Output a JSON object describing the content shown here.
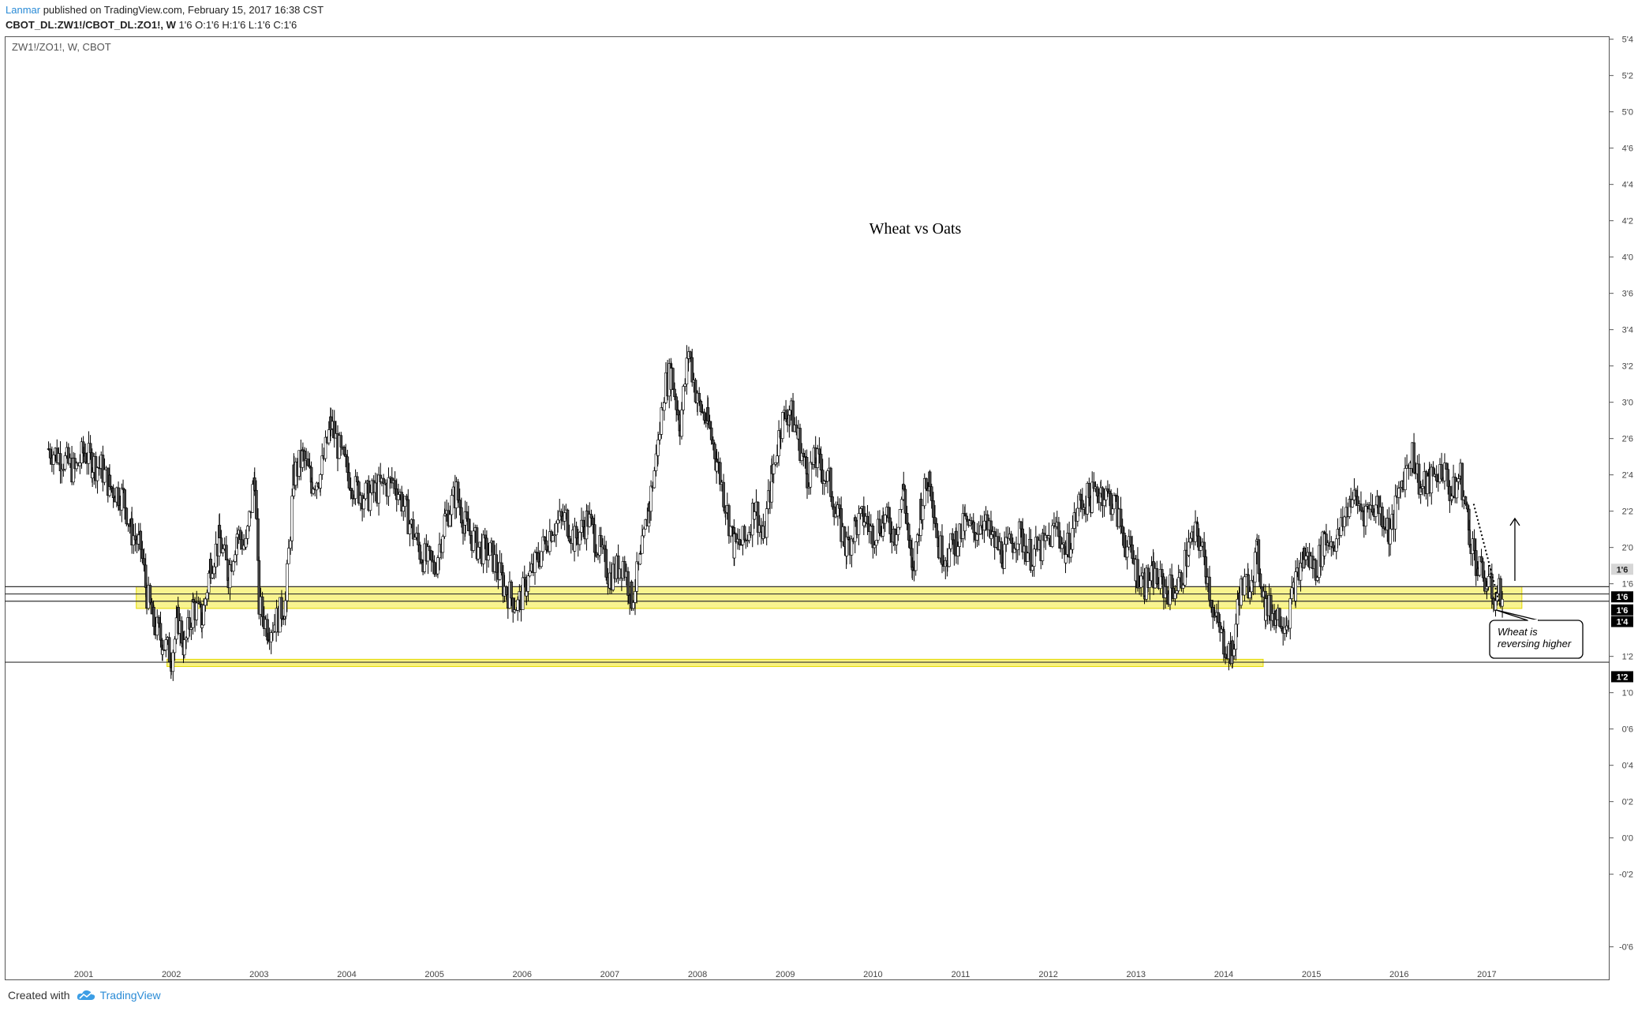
{
  "header": {
    "author": "Lanmar",
    "published": "published on TradingView.com, February 15, 2017 16:38 CST",
    "symbol": "CBOT_DL:ZW1!/CBOT_DL:ZO1!, W",
    "ohlc": "1'6 O:1'6 H:1'6 L:1'6 C:1'6"
  },
  "footer": {
    "created_with": "Created with",
    "brand": "TradingView"
  },
  "chart_data": {
    "type": "candlestick",
    "legend": "ZW1!/ZO1!, W, CBOT",
    "title": "Wheat vs Oats",
    "y_ticks": [
      {
        "v": 5.5,
        "label": "5'4"
      },
      {
        "v": 5.25,
        "label": "5'2"
      },
      {
        "v": 5.0,
        "label": "5'0"
      },
      {
        "v": 4.75,
        "label": "4'6"
      },
      {
        "v": 4.5,
        "label": "4'4"
      },
      {
        "v": 4.25,
        "label": "4'2"
      },
      {
        "v": 4.0,
        "label": "4'0"
      },
      {
        "v": 3.75,
        "label": "3'6"
      },
      {
        "v": 3.5,
        "label": "3'4"
      },
      {
        "v": 3.25,
        "label": "3'2"
      },
      {
        "v": 3.0,
        "label": "3'0"
      },
      {
        "v": 2.75,
        "label": "2'6"
      },
      {
        "v": 2.5,
        "label": "2'4"
      },
      {
        "v": 2.25,
        "label": "2'2"
      },
      {
        "v": 2.0,
        "label": "2'0"
      },
      {
        "v": 1.75,
        "label": "1'6"
      },
      {
        "v": 1.25,
        "label": "1'2"
      },
      {
        "v": 1.0,
        "label": "1'0"
      },
      {
        "v": 0.75,
        "label": "0'6"
      },
      {
        "v": 0.5,
        "label": "0'4"
      },
      {
        "v": 0.25,
        "label": "0'2"
      },
      {
        "v": 0.0,
        "label": "0'0"
      },
      {
        "v": -0.25,
        "label": "-0'2"
      },
      {
        "v": -0.75,
        "label": "-0'6"
      }
    ],
    "x_ticks": [
      "2001",
      "2002",
      "2003",
      "2004",
      "2005",
      "2006",
      "2007",
      "2008",
      "2009",
      "2010",
      "2011",
      "2012",
      "2013",
      "2014",
      "2015",
      "2016",
      "2017"
    ],
    "price_badges": [
      {
        "v": 1.85,
        "label": "1'6",
        "style": "gray"
      },
      {
        "v": 1.66,
        "label": "1'6",
        "style": "black"
      },
      {
        "v": 1.57,
        "label": "1'6",
        "style": "black"
      },
      {
        "v": 1.49,
        "label": "1'4",
        "style": "black"
      },
      {
        "v": 1.11,
        "label": "1'2",
        "style": "black"
      }
    ],
    "horizontal_lines": [
      1.73,
      1.68,
      1.63,
      1.21
    ],
    "support_zone": {
      "from_year": 2001.6,
      "to_year": 2017.4,
      "low": 1.58,
      "high": 1.73
    },
    "lower_zone": {
      "from_year": 2001.95,
      "to_year": 2014.45,
      "low": 1.18,
      "high": 1.23
    },
    "annotation": "Wheat is\nreversing higher",
    "x_range": [
      2000.1,
      2018.4
    ],
    "y_range": [
      -0.98,
      5.52
    ],
    "series": [
      [
        2000.6,
        2.68
      ],
      [
        2000.75,
        2.62
      ],
      [
        2000.9,
        2.52
      ],
      [
        2001.0,
        2.66
      ],
      [
        2001.1,
        2.58
      ],
      [
        2001.2,
        2.55
      ],
      [
        2001.3,
        2.42
      ],
      [
        2001.45,
        2.35
      ],
      [
        2001.55,
        2.1
      ],
      [
        2001.65,
        2.0
      ],
      [
        2001.72,
        1.68
      ],
      [
        2001.8,
        1.48
      ],
      [
        2001.9,
        1.35
      ],
      [
        2002.0,
        1.25
      ],
      [
        2002.08,
        1.5
      ],
      [
        2002.15,
        1.3
      ],
      [
        2002.25,
        1.6
      ],
      [
        2002.35,
        1.5
      ],
      [
        2002.45,
        1.9
      ],
      [
        2002.55,
        2.05
      ],
      [
        2002.65,
        1.82
      ],
      [
        2002.75,
        2.1
      ],
      [
        2002.85,
        2.0
      ],
      [
        2002.95,
        2.5
      ],
      [
        2003.0,
        1.6
      ],
      [
        2003.1,
        1.45
      ],
      [
        2003.2,
        1.5
      ],
      [
        2003.3,
        1.62
      ],
      [
        2003.4,
        2.5
      ],
      [
        2003.5,
        2.62
      ],
      [
        2003.6,
        2.45
      ],
      [
        2003.7,
        2.5
      ],
      [
        2003.82,
        2.85
      ],
      [
        2003.95,
        2.6
      ],
      [
        2004.1,
        2.4
      ],
      [
        2004.25,
        2.35
      ],
      [
        2004.4,
        2.42
      ],
      [
        2004.55,
        2.45
      ],
      [
        2004.7,
        2.2
      ],
      [
        2004.85,
        1.95
      ],
      [
        2005.0,
        1.85
      ],
      [
        2005.12,
        2.2
      ],
      [
        2005.25,
        2.38
      ],
      [
        2005.35,
        2.15
      ],
      [
        2005.5,
        2.0
      ],
      [
        2005.65,
        1.95
      ],
      [
        2005.8,
        1.72
      ],
      [
        2005.95,
        1.6
      ],
      [
        2006.05,
        1.75
      ],
      [
        2006.2,
        1.95
      ],
      [
        2006.35,
        2.15
      ],
      [
        2006.5,
        2.2
      ],
      [
        2006.6,
        2.05
      ],
      [
        2006.75,
        2.2
      ],
      [
        2006.9,
        1.95
      ],
      [
        2007.0,
        1.8
      ],
      [
        2007.15,
        1.9
      ],
      [
        2007.25,
        1.65
      ],
      [
        2007.35,
        1.9
      ],
      [
        2007.45,
        2.3
      ],
      [
        2007.55,
        2.7
      ],
      [
        2007.62,
        3.1
      ],
      [
        2007.7,
        3.2
      ],
      [
        2007.8,
        2.85
      ],
      [
        2007.9,
        3.35
      ],
      [
        2008.0,
        3.0
      ],
      [
        2008.12,
        2.85
      ],
      [
        2008.22,
        2.6
      ],
      [
        2008.32,
        2.3
      ],
      [
        2008.42,
        2.0
      ],
      [
        2008.55,
        2.05
      ],
      [
        2008.65,
        2.3
      ],
      [
        2008.75,
        2.05
      ],
      [
        2008.85,
        2.5
      ],
      [
        2008.95,
        2.85
      ],
      [
        2009.05,
        2.95
      ],
      [
        2009.15,
        2.75
      ],
      [
        2009.25,
        2.5
      ],
      [
        2009.35,
        2.6
      ],
      [
        2009.5,
        2.45
      ],
      [
        2009.6,
        2.2
      ],
      [
        2009.7,
        2.0
      ],
      [
        2009.8,
        2.15
      ],
      [
        2009.9,
        2.2
      ],
      [
        2010.0,
        2.1
      ],
      [
        2010.12,
        2.2
      ],
      [
        2010.25,
        2.1
      ],
      [
        2010.35,
        2.4
      ],
      [
        2010.45,
        1.78
      ],
      [
        2010.55,
        2.3
      ],
      [
        2010.65,
        2.5
      ],
      [
        2010.75,
        2.0
      ],
      [
        2010.85,
        1.95
      ],
      [
        2010.95,
        2.05
      ],
      [
        2011.05,
        2.15
      ],
      [
        2011.15,
        2.1
      ],
      [
        2011.25,
        2.2
      ],
      [
        2011.35,
        2.05
      ],
      [
        2011.5,
        1.95
      ],
      [
        2011.65,
        2.1
      ],
      [
        2011.8,
        1.95
      ],
      [
        2011.95,
        2.0
      ],
      [
        2012.1,
        2.15
      ],
      [
        2012.2,
        1.95
      ],
      [
        2012.35,
        2.3
      ],
      [
        2012.5,
        2.35
      ],
      [
        2012.6,
        2.4
      ],
      [
        2012.75,
        2.3
      ],
      [
        2012.9,
        2.0
      ],
      [
        2013.0,
        1.85
      ],
      [
        2013.1,
        1.75
      ],
      [
        2013.2,
        1.8
      ],
      [
        2013.35,
        1.7
      ],
      [
        2013.5,
        1.75
      ],
      [
        2013.6,
        2.0
      ],
      [
        2013.7,
        2.1
      ],
      [
        2013.8,
        1.85
      ],
      [
        2013.9,
        1.5
      ],
      [
        2014.0,
        1.35
      ],
      [
        2014.1,
        1.25
      ],
      [
        2014.18,
        1.7
      ],
      [
        2014.28,
        1.75
      ],
      [
        2014.38,
        1.95
      ],
      [
        2014.48,
        1.58
      ],
      [
        2014.6,
        1.55
      ],
      [
        2014.72,
        1.5
      ],
      [
        2014.82,
        1.75
      ],
      [
        2014.92,
        1.95
      ],
      [
        2015.05,
        1.85
      ],
      [
        2015.15,
        2.05
      ],
      [
        2015.3,
        2.05
      ],
      [
        2015.45,
        2.35
      ],
      [
        2015.6,
        2.25
      ],
      [
        2015.75,
        2.3
      ],
      [
        2015.9,
        2.1
      ],
      [
        2016.05,
        2.5
      ],
      [
        2016.15,
        2.65
      ],
      [
        2016.25,
        2.4
      ],
      [
        2016.35,
        2.45
      ],
      [
        2016.5,
        2.55
      ],
      [
        2016.6,
        2.35
      ],
      [
        2016.7,
        2.5
      ],
      [
        2016.8,
        2.1
      ],
      [
        2016.9,
        1.85
      ],
      [
        2017.0,
        1.75
      ],
      [
        2017.1,
        1.65
      ],
      [
        2017.18,
        1.72
      ]
    ]
  }
}
